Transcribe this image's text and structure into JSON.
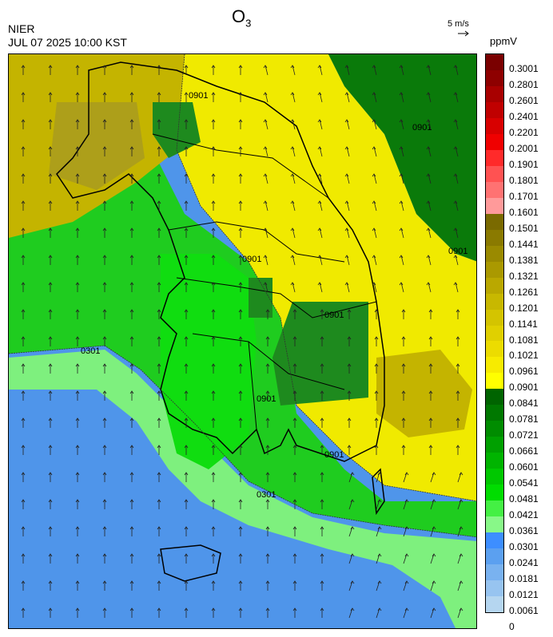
{
  "header": {
    "org": "NIER",
    "timestamp": "JUL 07 2025 10:00 KST",
    "title_main": "O",
    "title_sub": "3",
    "wind_ref": "5 m/s",
    "unit": "ppmV"
  },
  "legend": {
    "labels": [
      "0.3001",
      "0.2801",
      "0.2601",
      "0.2401",
      "0.2201",
      "0.2001",
      "0.1901",
      "0.1801",
      "0.1701",
      "0.1601",
      "0.1501",
      "0.1441",
      "0.1381",
      "0.1321",
      "0.1261",
      "0.1201",
      "0.1141",
      "0.1081",
      "0.1021",
      "0.0961",
      "0.0901",
      "0.0841",
      "0.0781",
      "0.0721",
      "0.0661",
      "0.0601",
      "0.0541",
      "0.0481",
      "0.0421",
      "0.0361",
      "0.0301",
      "0.0241",
      "0.0181",
      "0.0121",
      "0.0061",
      "0"
    ],
    "colors": [
      "#7a0000",
      "#8e0000",
      "#a80000",
      "#c00000",
      "#d80000",
      "#f00000",
      "#ff2a2a",
      "#ff5252",
      "#ff7272",
      "#ff9a9a",
      "#7a6a00",
      "#8a7a00",
      "#9a8a00",
      "#aa9900",
      "#baa800",
      "#c8b800",
      "#d4c400",
      "#e0d000",
      "#ecdc00",
      "#f7eb00",
      "#ffff00",
      "#006400",
      "#007800",
      "#008c00",
      "#00a000",
      "#00b400",
      "#00c800",
      "#00dd00",
      "#44f044",
      "#88f888",
      "#3d8eff",
      "#5ba0f0",
      "#79b2f0",
      "#97c4f0",
      "#b5d6f0"
    ],
    "yellow_low_threshold_label": "0.0901"
  },
  "map": {
    "contour_labels": [
      "0901",
      "0301",
      "0901",
      "0901",
      "0901",
      "0901",
      "0901",
      "0301",
      "0901"
    ],
    "colors": {
      "sea_blue": "#4f95ea",
      "light_green": "#7ef07e",
      "green": "#1fcc1f",
      "bright_green": "#10dd10",
      "dark_green": "#1e8a1e",
      "yellow": "#f0ea00",
      "olive": "#c4b400",
      "dark_olive": "#a89a20",
      "deep_green": "#0a6a0a"
    }
  }
}
